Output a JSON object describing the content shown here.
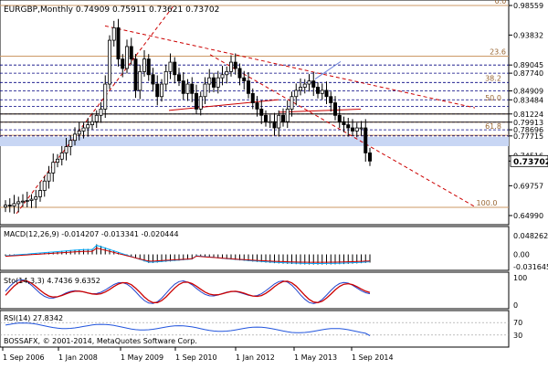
{
  "colors": {
    "background": "#ffffff",
    "frame": "#000000",
    "candle": "#000000",
    "fib_solid": "#cc9966",
    "fib_dash": "#000080",
    "trend_red": "#cc0000",
    "trend_blue": "#6a7fd8",
    "highlight_band": "#c8d6f4",
    "price_tag_bg": "#ffffff",
    "macd_hist": "#000000",
    "macd_line": "#00aaff",
    "macd_signal": "#cc0000",
    "stoch_main": "#2244cc",
    "stoch_signal": "#cc0000",
    "rsi_line": "#2255dd"
  },
  "main": {
    "header": "EURGBP,Monthly  0.74909 0.75911 0.73621 0.73702",
    "current_price": "0.73702",
    "fib_labels": [
      "0.0",
      "23.6",
      "38.2",
      "50.0",
      "61.8",
      "100.0"
    ],
    "axis_labels": [
      "0.98559",
      "0.93832",
      "0.89045",
      "0.87740",
      "0.84909",
      "0.83484",
      "0.81224",
      "0.79913",
      "0.78696",
      "0.77715",
      "0.74516",
      "0.73702",
      "0.69757",
      "0.64990"
    ]
  },
  "macd": {
    "label": "MACD(12,26,9) -0.014207 -0.013341 -0.020444",
    "axis_labels": [
      "0.048262",
      "0.00",
      "-0.031645"
    ]
  },
  "stoch": {
    "label": "Sto(14,3,3) 4.7436 9.6352",
    "axis_labels": [
      "100",
      "0"
    ]
  },
  "rsi": {
    "label": "RSI(14) 27.8342",
    "axis_labels": [
      "70",
      "30"
    ],
    "footer": "BOSSAFX, © 2001-2014, MetaQuotes Software Corp."
  },
  "time_axis": [
    "1 Sep 2006",
    "1 Jan 2008",
    "1 May 2009",
    "1 Sep 2010",
    "1 Jan 2012",
    "1 May 2013",
    "1 Sep 2014"
  ],
  "chart_data": {
    "type": "candlestick",
    "symbol": "EURGBP",
    "timeframe": "Monthly",
    "last_bar": {
      "open": 0.74909,
      "high": 0.75911,
      "low": 0.73621,
      "close": 0.73702
    },
    "ylim": [
      0.6499,
      0.98559
    ],
    "series": [
      {
        "values": [
          0.6665,
          0.665,
          0.669,
          0.672,
          0.673,
          0.674,
          0.676,
          0.68,
          0.69,
          0.705,
          0.718,
          0.735,
          0.74,
          0.75,
          0.76,
          0.77,
          0.78,
          0.785,
          0.79,
          0.795,
          0.8,
          0.81,
          0.82,
          0.86,
          0.93,
          0.95,
          0.9,
          0.885,
          0.92,
          0.9,
          0.85,
          0.88,
          0.9,
          0.875,
          0.86,
          0.84,
          0.86,
          0.88,
          0.895,
          0.875,
          0.865,
          0.845,
          0.86,
          0.845,
          0.82,
          0.84,
          0.86,
          0.87,
          0.855,
          0.87,
          0.875,
          0.88,
          0.895,
          0.885,
          0.87,
          0.865,
          0.845,
          0.83,
          0.82,
          0.81,
          0.8,
          0.8,
          0.79,
          0.81,
          0.8,
          0.82,
          0.84,
          0.85,
          0.855,
          0.86,
          0.865,
          0.855,
          0.845,
          0.85,
          0.84,
          0.83,
          0.81,
          0.8,
          0.795,
          0.79,
          0.785,
          0.79,
          0.79,
          0.75,
          0.737
        ]
      }
    ],
    "fibonacci_levels": [
      {
        "label": "0.0"
      },
      {
        "label": "23.6"
      },
      {
        "label": "38.2"
      },
      {
        "label": "50.0"
      },
      {
        "label": "61.8"
      },
      {
        "label": "100.0"
      }
    ],
    "indicators": {
      "macd": {
        "params": "12,26,9",
        "values": [
          -0.014207,
          -0.013341,
          -0.020444
        ]
      },
      "stochastic": {
        "params": "14,3,3",
        "main": 4.7436,
        "signal": 9.6352
      },
      "rsi": {
        "params": "14",
        "value": 27.8342
      }
    },
    "time_labels": [
      "1 Sep 2006",
      "1 Jan 2008",
      "1 May 2009",
      "1 Sep 2010",
      "1 Jan 2012",
      "1 May 2013",
      "1 Sep 2014"
    ]
  }
}
